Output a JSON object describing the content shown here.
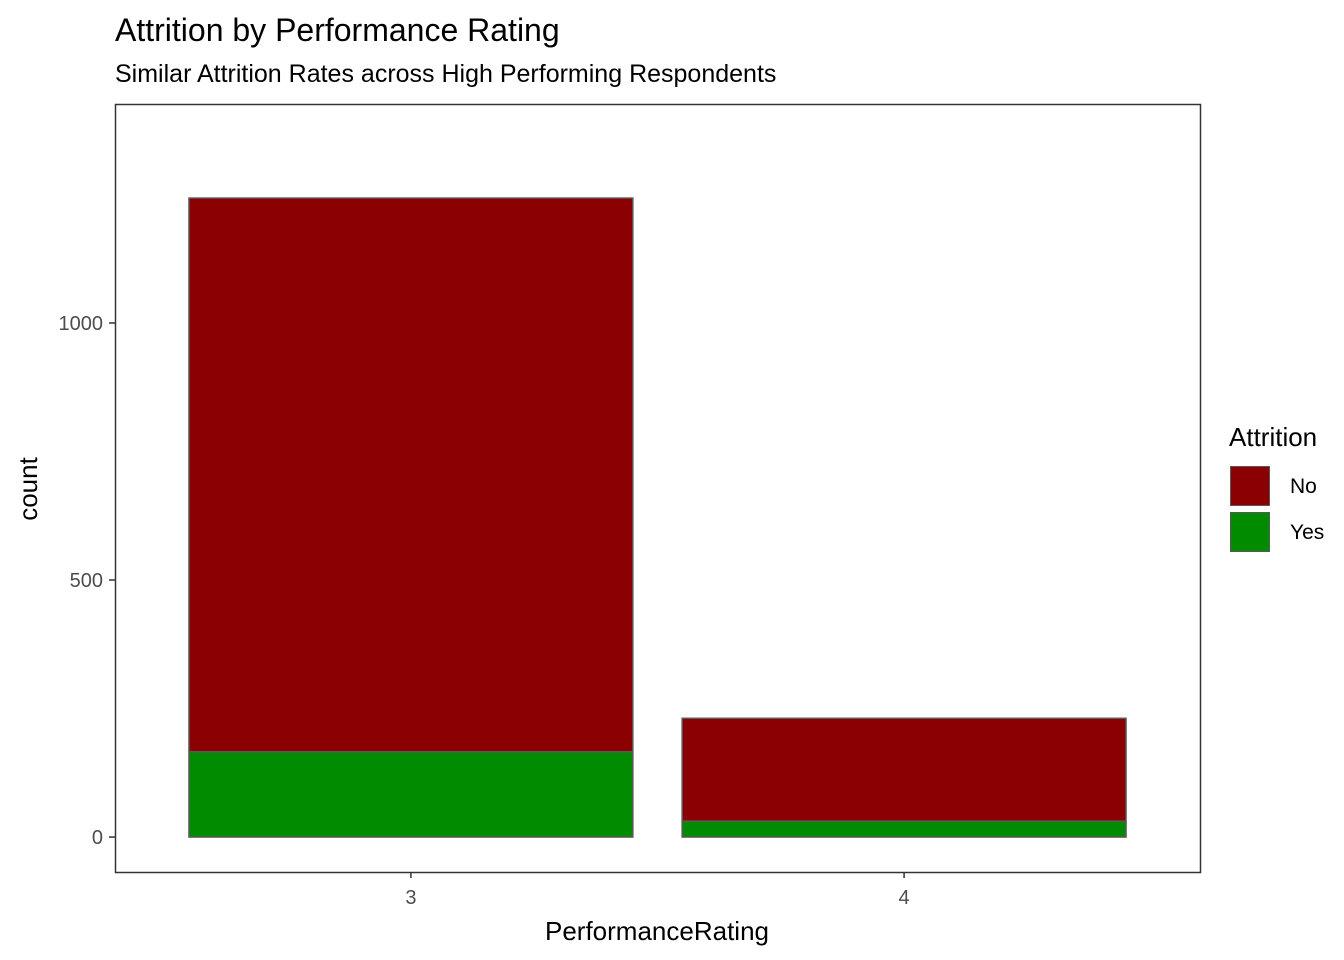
{
  "chart_data": {
    "type": "bar",
    "stacked": true,
    "title": "Attrition by Performance Rating",
    "subtitle": "Similar Attrition Rates across High Performing Respondents",
    "xlabel": "PerformanceRating",
    "ylabel": "count",
    "categories": [
      "3",
      "4"
    ],
    "series": [
      {
        "name": "No",
        "color": "#8B0000",
        "values": [
          1077,
          200
        ]
      },
      {
        "name": "Yes",
        "color": "#008B00",
        "values": [
          166,
          31
        ]
      }
    ],
    "yticks": [
      0,
      500,
      1000
    ],
    "ylim": [
      -68,
      1426
    ],
    "legend": {
      "title": "Attrition",
      "position": "right"
    },
    "grid": false
  }
}
